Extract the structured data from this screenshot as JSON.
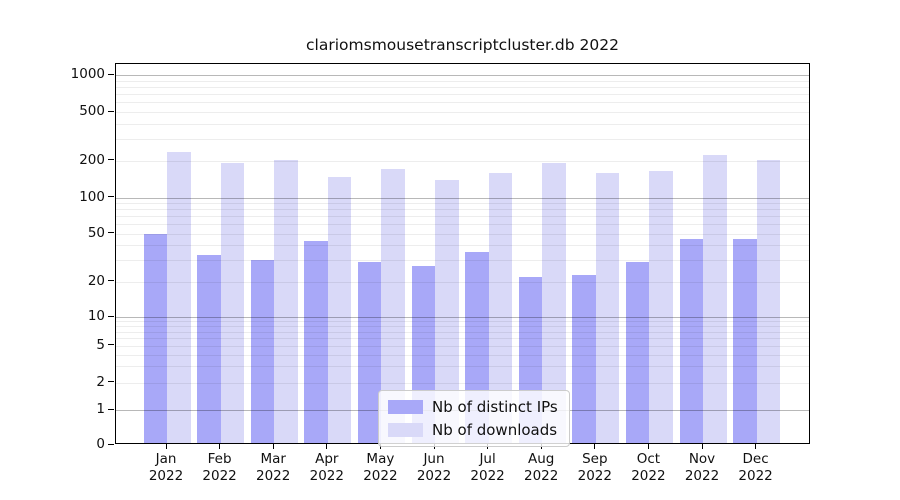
{
  "title": "clariomsmousetranscriptcluster.db 2022",
  "chart_data": {
    "type": "bar",
    "title": "clariomsmousetranscriptcluster.db 2022",
    "categories": [
      "Jan 2022",
      "Feb 2022",
      "Mar 2022",
      "Apr 2022",
      "May 2022",
      "Jun 2022",
      "Jul 2022",
      "Aug 2022",
      "Sep 2022",
      "Oct 2022",
      "Nov 2022",
      "Dec 2022"
    ],
    "series": [
      {
        "name": "Nb of distinct IPs",
        "color": "#a8a8f8",
        "values": [
          48,
          32,
          29,
          42,
          28,
          26,
          34,
          21,
          22,
          28,
          43,
          43
        ]
      },
      {
        "name": "Nb of downloads",
        "color": "#d9d9f8",
        "values": [
          225,
          184,
          195,
          142,
          163,
          135,
          152,
          184,
          154,
          158,
          213,
          195
        ]
      }
    ],
    "xlabel": "",
    "ylabel": "",
    "yscale": "log-like with 0 baseline",
    "y_tick_labels": [
      "0",
      "1",
      "2",
      "5",
      "10",
      "20",
      "50",
      "100",
      "200",
      "500",
      "1000"
    ],
    "ylim": [
      0,
      1300
    ],
    "grid": true,
    "legend_position": "lower center"
  },
  "x_axis": {
    "months": [
      "Jan",
      "Feb",
      "Mar",
      "Apr",
      "May",
      "Jun",
      "Jul",
      "Aug",
      "Sep",
      "Oct",
      "Nov",
      "Dec"
    ],
    "year": "2022"
  },
  "colors": {
    "bar_distinct_ips": "#a8a8f8",
    "bar_downloads": "#d9d9f8",
    "axis_spine": "#000000",
    "background": "#ffffff"
  }
}
